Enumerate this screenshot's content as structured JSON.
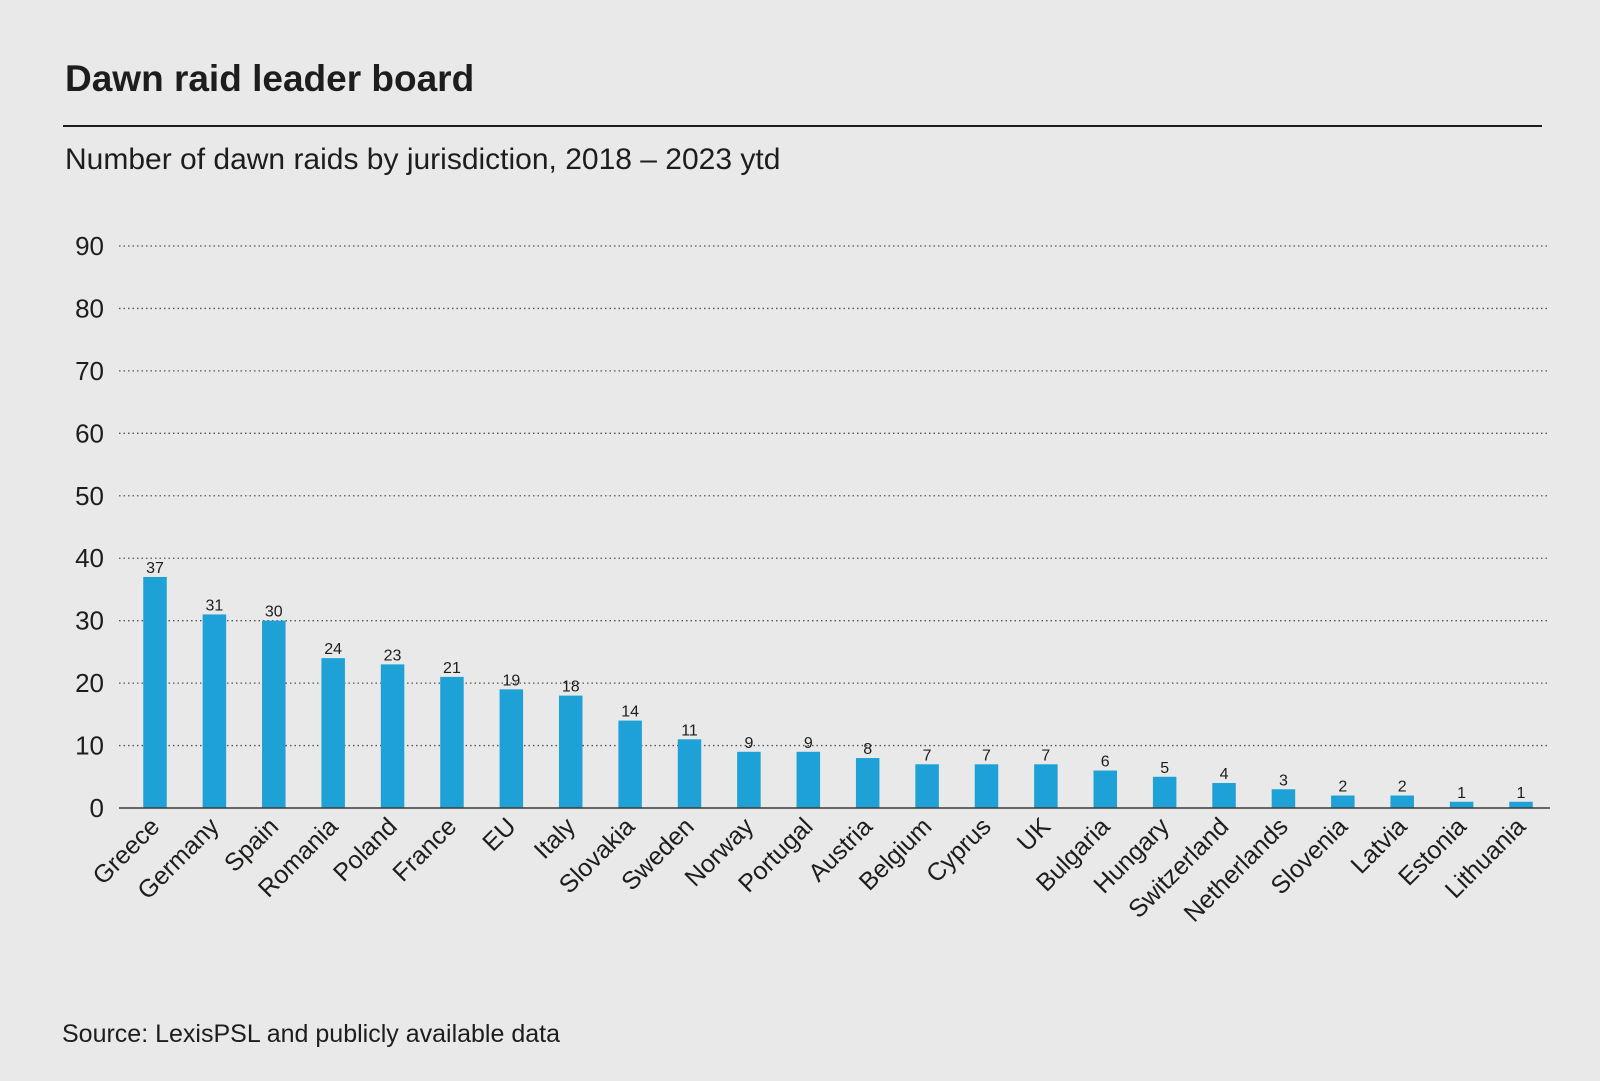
{
  "title": "Dawn raid leader board",
  "subtitle": "Number of dawn raids by jurisdiction, 2018 – 2023 ytd",
  "source": "Source: LexisPSL and publicly available data",
  "colors": {
    "bar": "#1ea1d6",
    "background": "#e8e9e8",
    "text": "#1d1d1b"
  },
  "chart_data": {
    "type": "bar",
    "title": "Dawn raid leader board",
    "subtitle": "Number of dawn raids by jurisdiction, 2018 – 2023 ytd",
    "xlabel": "",
    "ylabel": "",
    "ylim": [
      0,
      90
    ],
    "yticks": [
      0,
      10,
      20,
      30,
      40,
      50,
      60,
      70,
      80,
      90
    ],
    "grid": true,
    "categories": [
      "Greece",
      "Germany",
      "Spain",
      "Romania",
      "Poland",
      "France",
      "EU",
      "Italy",
      "Slovakia",
      "Sweden",
      "Norway",
      "Portugal",
      "Austria",
      "Belgium",
      "Cyprus",
      "UK",
      "Bulgaria",
      "Hungary",
      "Switzerland",
      "Netherlands",
      "Slovenia",
      "Latvia",
      "Estonia",
      "Lithuania"
    ],
    "values": [
      37,
      31,
      30,
      24,
      23,
      21,
      19,
      18,
      14,
      11,
      9,
      9,
      8,
      7,
      7,
      7,
      6,
      5,
      4,
      3,
      2,
      2,
      1,
      1
    ]
  }
}
